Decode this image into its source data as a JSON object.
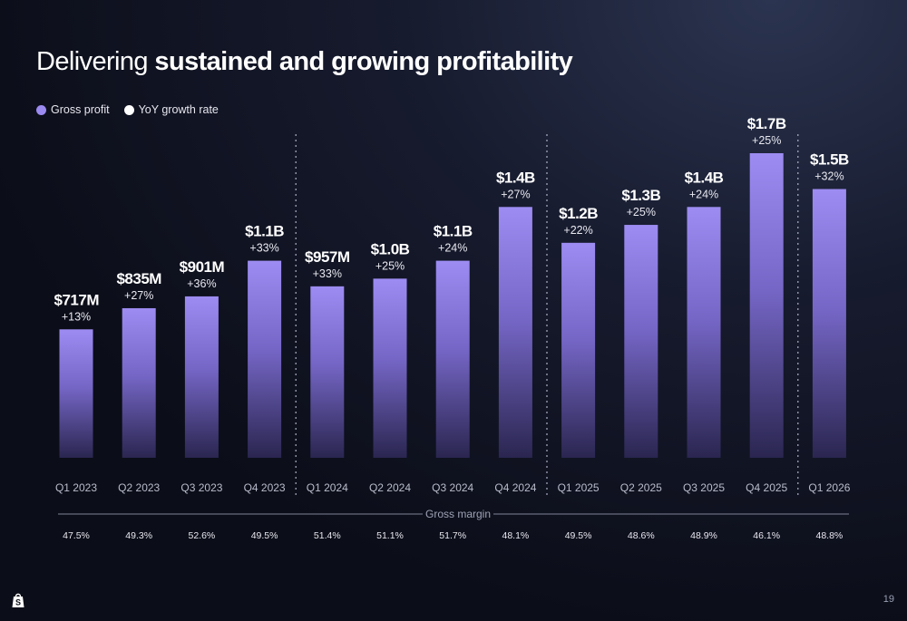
{
  "title": {
    "prefix": "Delivering",
    "emphasis": "sustained and growing profitability"
  },
  "legend": [
    {
      "label": "Gross profit",
      "color": "#9b8af0"
    },
    {
      "label": "YoY growth rate",
      "color": "#ffffff"
    }
  ],
  "page_number": "19",
  "logo_icon": "shopify-bag-icon",
  "chart_data": {
    "type": "bar",
    "categories": [
      "Q1 2023",
      "Q2 2023",
      "Q3 2023",
      "Q4 2023",
      "Q1 2024",
      "Q2 2024",
      "Q3 2024",
      "Q4 2024",
      "Q1 2025",
      "Q2 2025",
      "Q3 2025",
      "Q4 2025",
      "Q1 2026"
    ],
    "series": [
      {
        "name": "Gross profit",
        "values": [
          717,
          835,
          901,
          1100,
          957,
          1000,
          1100,
          1400,
          1200,
          1300,
          1400,
          1700,
          1500
        ],
        "unit": "$M",
        "labels": [
          "$717M",
          "$835M",
          "$901M",
          "$1.1B",
          "$957M",
          "$1.0B",
          "$1.1B",
          "$1.4B",
          "$1.2B",
          "$1.3B",
          "$1.4B",
          "$1.7B",
          "$1.5B"
        ],
        "color": "#9b8af0"
      },
      {
        "name": "YoY growth rate",
        "values": [
          13,
          27,
          36,
          33,
          33,
          25,
          24,
          27,
          22,
          25,
          24,
          25,
          32
        ],
        "unit": "%",
        "labels": [
          "+13%",
          "+27%",
          "+36%",
          "+33%",
          "+33%",
          "+25%",
          "+24%",
          "+27%",
          "+22%",
          "+25%",
          "+24%",
          "+25%",
          "+32%"
        ],
        "color": "#ffffff"
      }
    ],
    "gross_margin": {
      "label": "Gross margin",
      "values": [
        47.5,
        49.3,
        52.6,
        49.5,
        51.4,
        51.1,
        51.7,
        48.1,
        49.5,
        48.6,
        48.9,
        46.1,
        48.8
      ],
      "labels": [
        "47.5%",
        "49.3%",
        "52.6%",
        "49.5%",
        "51.4%",
        "51.1%",
        "51.7%",
        "48.1%",
        "49.5%",
        "48.6%",
        "48.9%",
        "46.1%",
        "48.8%"
      ]
    },
    "year_separators_after": [
      "Q4 2023",
      "Q4 2024",
      "Q4 2025"
    ],
    "grid": false,
    "legend_position": "top-left"
  }
}
